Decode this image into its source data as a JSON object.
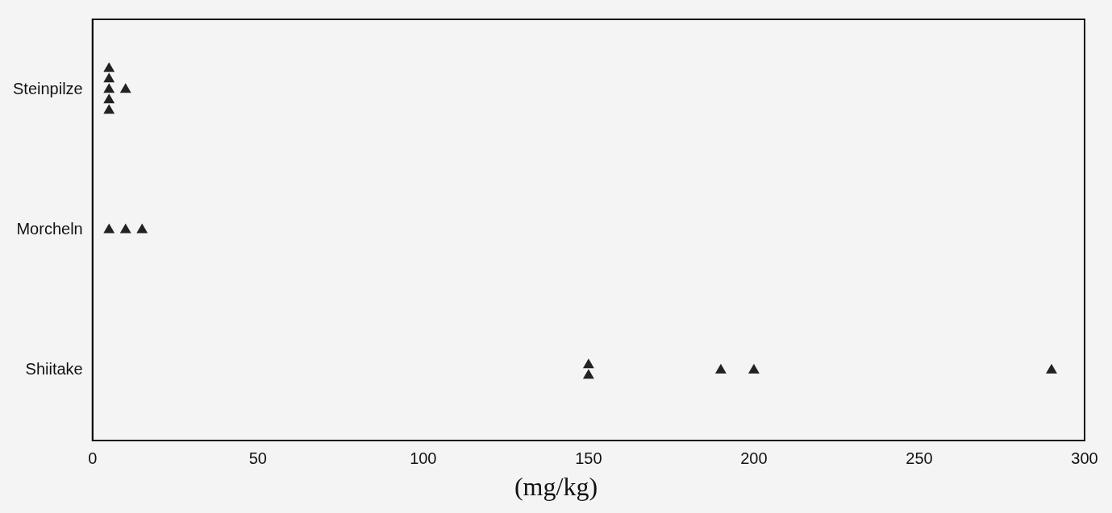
{
  "chart_data": {
    "type": "scatter",
    "orientation": "horizontal",
    "xlabel": "(mg/kg)",
    "categories": [
      "Steinpilze",
      "Morcheln",
      "Shiitake"
    ],
    "xlim": [
      0,
      300
    ],
    "xticks": [
      0,
      50,
      100,
      150,
      200,
      250,
      300
    ],
    "grid": false,
    "legend": false,
    "marker": "triangle",
    "series": [
      {
        "color": "#222222",
        "values": [
          5,
          5,
          150
        ]
      },
      {
        "color": "#222222",
        "values": [
          5,
          10,
          150
        ]
      },
      {
        "color": "#222222",
        "values": [
          5,
          15,
          190
        ]
      },
      {
        "color": "#222222",
        "values": [
          5,
          null,
          200
        ]
      },
      {
        "color": "#222222",
        "values": [
          5,
          null,
          290
        ]
      },
      {
        "color": "#222222",
        "values": [
          10,
          null,
          null
        ]
      }
    ]
  }
}
